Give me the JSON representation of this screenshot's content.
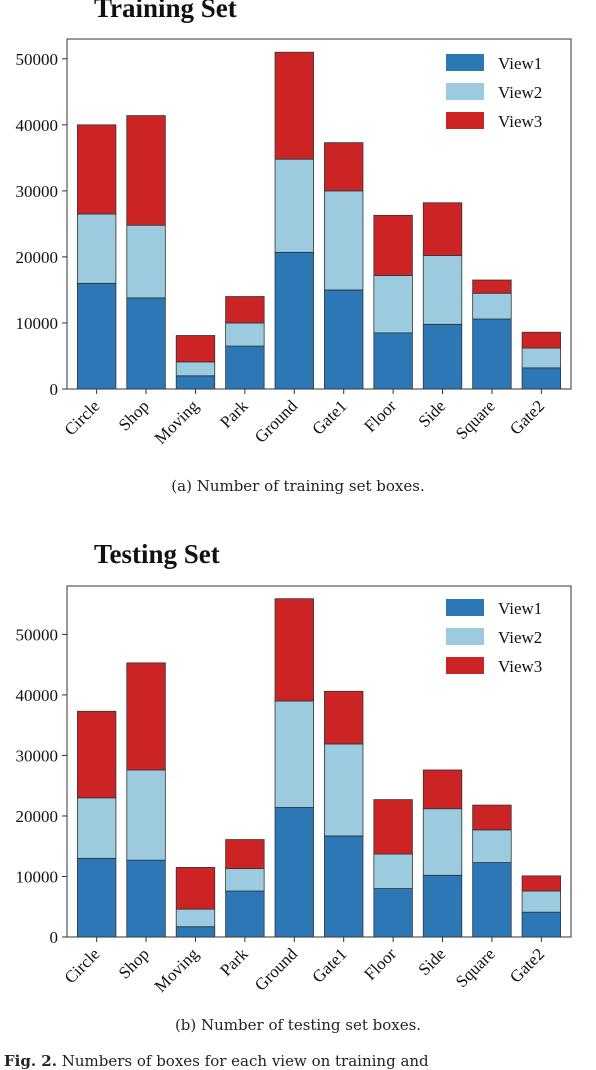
{
  "chart_data": [
    {
      "type": "bar",
      "stacked": true,
      "title": "Training Set",
      "categories": [
        "Circle",
        "Shop",
        "Moving",
        "Park",
        "Ground",
        "Gate1",
        "Floor",
        "Side",
        "Square",
        "Gate2"
      ],
      "series": [
        {
          "name": "View1",
          "color": "#2c77b6",
          "values": [
            16000,
            13800,
            2000,
            6500,
            20700,
            15000,
            8500,
            9800,
            10600,
            3200
          ]
        },
        {
          "name": "View2",
          "color": "#9ccbdf",
          "values": [
            10500,
            11000,
            2100,
            3500,
            14100,
            15000,
            8700,
            10400,
            3900,
            3000
          ]
        },
        {
          "name": "View3",
          "color": "#cc2424",
          "values": [
            13500,
            16600,
            4000,
            4000,
            16200,
            7300,
            9100,
            8000,
            2000,
            2400
          ]
        }
      ],
      "yticks": [
        0,
        10000,
        20000,
        30000,
        40000,
        50000
      ],
      "ylim": [
        0,
        53000
      ],
      "caption": "(a) Number of training set boxes."
    },
    {
      "type": "bar",
      "stacked": true,
      "title": "Testing Set",
      "categories": [
        "Circle",
        "Shop",
        "Moving",
        "Park",
        "Ground",
        "Gate1",
        "Floor",
        "Side",
        "Square",
        "Gate2"
      ],
      "series": [
        {
          "name": "View1",
          "color": "#2c77b6",
          "values": [
            13000,
            12700,
            1700,
            7600,
            21400,
            16700,
            8000,
            10200,
            12300,
            4100
          ]
        },
        {
          "name": "View2",
          "color": "#9ccbdf",
          "values": [
            10000,
            14900,
            2900,
            3700,
            17600,
            15200,
            5700,
            11000,
            5400,
            3500
          ]
        },
        {
          "name": "View3",
          "color": "#cc2424",
          "values": [
            14300,
            17700,
            6900,
            4800,
            16900,
            8700,
            9000,
            6400,
            4100,
            2500
          ]
        }
      ],
      "yticks": [
        0,
        10000,
        20000,
        30000,
        40000,
        50000
      ],
      "ylim": [
        0,
        58000
      ],
      "caption": "(b) Number of testing set boxes."
    }
  ],
  "figure_note": {
    "label": "Fig. 2.",
    "text": "Numbers of boxes for each view on training and"
  }
}
